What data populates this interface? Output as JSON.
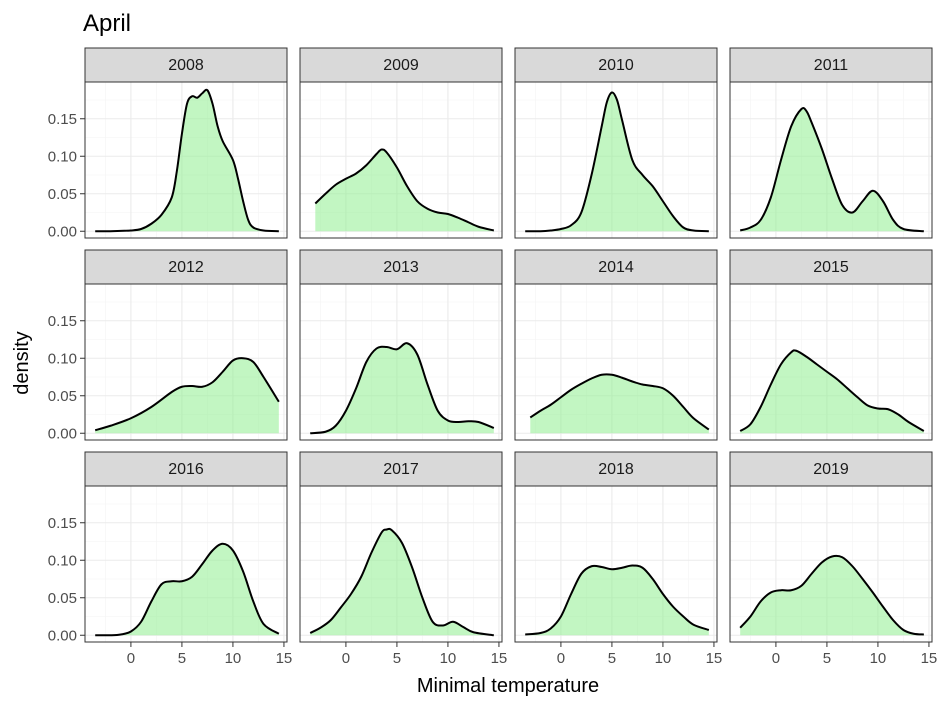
{
  "chart_data": {
    "type": "area",
    "title": "April",
    "xlabel": "Minimal temperature",
    "ylabel": "density",
    "xlim": [
      -4.5,
      15.3
    ],
    "ylim": [
      -0.009,
      0.199
    ],
    "x_ticks": [
      0,
      5,
      10,
      15
    ],
    "y_ticks": [
      0.0,
      0.05,
      0.1,
      0.15
    ],
    "y_tick_labels": [
      "0.00",
      "0.05",
      "0.10",
      "0.15"
    ],
    "grid": true,
    "fill_color": "#90ee90",
    "line_color": "#000000",
    "facets": [
      {
        "label": "2008",
        "x": [
          -3.5,
          -2,
          -1,
          0,
          1,
          2,
          3,
          4,
          4.5,
          5,
          5.5,
          6,
          6.5,
          7,
          7.5,
          8,
          8.5,
          9,
          10,
          10.5,
          11,
          11.5,
          12,
          13,
          14.5
        ],
        "y": [
          0,
          0,
          0.0005,
          0.001,
          0.003,
          0.01,
          0.022,
          0.045,
          0.08,
          0.13,
          0.17,
          0.18,
          0.178,
          0.184,
          0.188,
          0.17,
          0.14,
          0.12,
          0.095,
          0.07,
          0.04,
          0.015,
          0.005,
          0.001,
          0
        ]
      },
      {
        "label": "2009",
        "x": [
          -3,
          -2,
          -1,
          0,
          1,
          2,
          3,
          3.5,
          4,
          5,
          6,
          7,
          8,
          9,
          10,
          11,
          12,
          13,
          14.5
        ],
        "y": [
          0.037,
          0.05,
          0.062,
          0.07,
          0.077,
          0.088,
          0.103,
          0.109,
          0.105,
          0.085,
          0.06,
          0.04,
          0.03,
          0.025,
          0.023,
          0.018,
          0.012,
          0.006,
          0.001
        ]
      },
      {
        "label": "2010",
        "x": [
          -3.5,
          -2,
          -1,
          0,
          1,
          2,
          3,
          4,
          4.5,
          5,
          5.5,
          6,
          7,
          8,
          9,
          10,
          11,
          12,
          13,
          14.5
        ],
        "y": [
          0,
          0,
          0.001,
          0.003,
          0.008,
          0.025,
          0.075,
          0.14,
          0.172,
          0.185,
          0.175,
          0.148,
          0.095,
          0.075,
          0.06,
          0.04,
          0.02,
          0.005,
          0.001,
          0
        ]
      },
      {
        "label": "2011",
        "x": [
          -3.5,
          -2.5,
          -1.5,
          -0.5,
          0.5,
          1.5,
          2.5,
          3,
          3.5,
          4.5,
          5.5,
          6.5,
          7.5,
          8.5,
          9.5,
          10.5,
          11.5,
          12.5,
          14.5
        ],
        "y": [
          0.001,
          0.005,
          0.015,
          0.045,
          0.095,
          0.14,
          0.163,
          0.16,
          0.145,
          0.11,
          0.07,
          0.035,
          0.025,
          0.04,
          0.054,
          0.04,
          0.015,
          0.003,
          0
        ]
      },
      {
        "label": "2012",
        "x": [
          -3.5,
          -2,
          0,
          2,
          4,
          5,
          6,
          7,
          8,
          9,
          10,
          11,
          12,
          13,
          14.5
        ],
        "y": [
          0.004,
          0.01,
          0.02,
          0.035,
          0.055,
          0.062,
          0.063,
          0.062,
          0.068,
          0.082,
          0.097,
          0.1,
          0.095,
          0.075,
          0.042
        ]
      },
      {
        "label": "2013",
        "x": [
          -3.5,
          -2,
          -1,
          0,
          1,
          2,
          3,
          4,
          5,
          6,
          7,
          8,
          9,
          10,
          11,
          12,
          13,
          14.5
        ],
        "y": [
          0,
          0.002,
          0.01,
          0.03,
          0.06,
          0.095,
          0.113,
          0.115,
          0.112,
          0.12,
          0.105,
          0.065,
          0.03,
          0.017,
          0.015,
          0.016,
          0.015,
          0.007
        ]
      },
      {
        "label": "2014",
        "x": [
          -3,
          -2,
          -1,
          0,
          1,
          2,
          3,
          4,
          5,
          6,
          7,
          8,
          9,
          10,
          11,
          12,
          13,
          14.5
        ],
        "y": [
          0.021,
          0.03,
          0.038,
          0.048,
          0.058,
          0.066,
          0.073,
          0.078,
          0.078,
          0.074,
          0.069,
          0.065,
          0.063,
          0.06,
          0.05,
          0.035,
          0.02,
          0.005
        ]
      },
      {
        "label": "2015",
        "x": [
          -3.5,
          -2.5,
          -1.5,
          -0.5,
          0.5,
          1.5,
          2,
          3,
          4,
          5,
          6,
          7,
          8,
          9,
          10,
          11,
          12,
          13,
          14.5
        ],
        "y": [
          0.003,
          0.012,
          0.035,
          0.065,
          0.092,
          0.108,
          0.11,
          0.102,
          0.092,
          0.082,
          0.072,
          0.06,
          0.048,
          0.037,
          0.033,
          0.032,
          0.025,
          0.015,
          0.003
        ]
      },
      {
        "label": "2016",
        "x": [
          -3.5,
          -2,
          -1,
          0,
          1,
          2,
          3,
          4,
          5,
          6,
          7,
          8,
          9,
          10,
          11,
          12,
          13,
          14.5
        ],
        "y": [
          0,
          0,
          0.001,
          0.005,
          0.018,
          0.045,
          0.068,
          0.072,
          0.072,
          0.078,
          0.095,
          0.113,
          0.122,
          0.113,
          0.085,
          0.045,
          0.015,
          0.002
        ]
      },
      {
        "label": "2017",
        "x": [
          -3.5,
          -2.5,
          -1.5,
          -0.5,
          0.5,
          1.5,
          2.5,
          3.5,
          4,
          4.5,
          5.5,
          6.5,
          7.5,
          8.5,
          9.5,
          10.5,
          11.5,
          12.5,
          14.5
        ],
        "y": [
          0.003,
          0.01,
          0.02,
          0.037,
          0.055,
          0.078,
          0.11,
          0.137,
          0.141,
          0.14,
          0.123,
          0.09,
          0.05,
          0.018,
          0.013,
          0.018,
          0.011,
          0.004,
          0
        ]
      },
      {
        "label": "2018",
        "x": [
          -3.5,
          -2,
          -1,
          0,
          1,
          2,
          3,
          4,
          5,
          6,
          7,
          8,
          9,
          10,
          11,
          12,
          13,
          14.5
        ],
        "y": [
          0.001,
          0.003,
          0.009,
          0.025,
          0.055,
          0.082,
          0.092,
          0.091,
          0.088,
          0.09,
          0.093,
          0.09,
          0.075,
          0.055,
          0.038,
          0.025,
          0.014,
          0.007
        ]
      },
      {
        "label": "2019",
        "x": [
          -3.5,
          -2.5,
          -1.5,
          -0.5,
          0.5,
          1.5,
          2.5,
          3.5,
          4.5,
          5.5,
          6.5,
          7.5,
          8.5,
          9.5,
          10.5,
          11.5,
          12.5,
          13.5,
          14.5
        ],
        "y": [
          0.01,
          0.025,
          0.045,
          0.057,
          0.06,
          0.06,
          0.066,
          0.082,
          0.097,
          0.105,
          0.104,
          0.092,
          0.075,
          0.057,
          0.038,
          0.02,
          0.007,
          0.002,
          0.001
        ]
      }
    ]
  }
}
